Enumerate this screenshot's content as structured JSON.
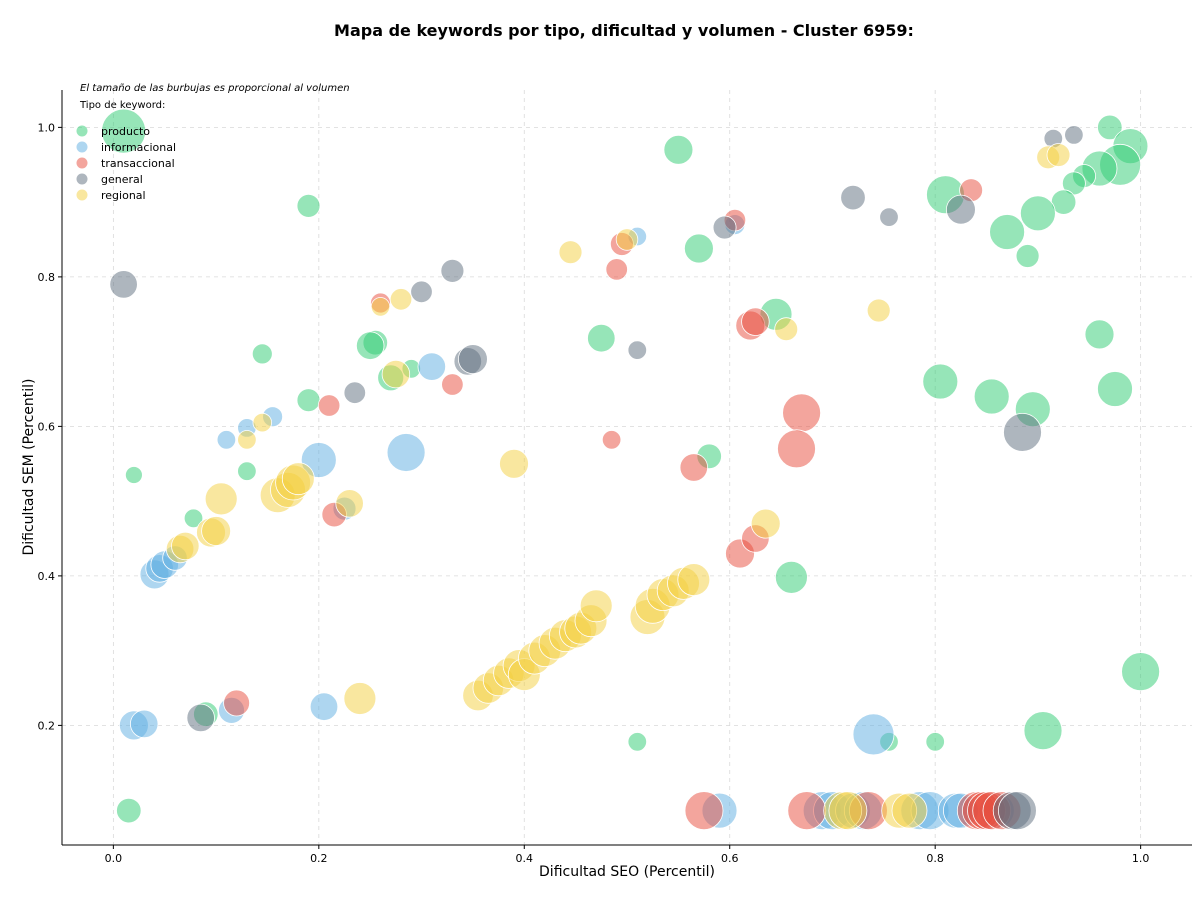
{
  "chart_data": {
    "type": "scatter",
    "title": "Mapa de keywords por tipo, dificultad y volumen - Cluster 6959:",
    "xlabel": "Dificultad SEO (Percentil)",
    "ylabel": "Dificultad SEM (Percentil)",
    "xlim": [
      -0.05,
      1.05
    ],
    "ylim": [
      0.04,
      1.05
    ],
    "xticks": [
      0.0,
      0.2,
      0.4,
      0.6,
      0.8,
      1.0
    ],
    "yticks": [
      0.2,
      0.4,
      0.6,
      0.8,
      1.0
    ],
    "xtick_labels": [
      "0.0",
      "0.2",
      "0.4",
      "0.6",
      "0.8",
      "1.0"
    ],
    "ytick_labels": [
      "0.2",
      "0.4",
      "0.6",
      "0.8",
      "1.0"
    ],
    "grid": true,
    "note": "El tamaño de las burbujas es proporcional al volumen",
    "legend_title": "Tipo de keyword:",
    "legend_position": "top-left",
    "series": [
      {
        "name": "producto",
        "color": "#2ecc71",
        "points": [
          [
            0.01,
            0.995,
            1
          ],
          [
            0.55,
            0.97,
            0.5
          ],
          [
            0.97,
            1.0,
            0.35
          ],
          [
            0.99,
            0.975,
            0.7
          ],
          [
            0.98,
            0.95,
            0.9
          ],
          [
            0.96,
            0.945,
            0.7
          ],
          [
            0.945,
            0.935,
            0.3
          ],
          [
            0.935,
            0.925,
            0.3
          ],
          [
            0.925,
            0.9,
            0.35
          ],
          [
            0.9,
            0.885,
            0.7
          ],
          [
            0.87,
            0.86,
            0.7
          ],
          [
            0.89,
            0.828,
            0.3
          ],
          [
            0.81,
            0.91,
            0.8
          ],
          [
            0.57,
            0.838,
            0.5
          ],
          [
            0.19,
            0.895,
            0.3
          ],
          [
            0.645,
            0.75,
            0.6
          ],
          [
            0.475,
            0.718,
            0.45
          ],
          [
            0.255,
            0.712,
            0.35
          ],
          [
            0.25,
            0.708,
            0.45
          ],
          [
            0.145,
            0.697,
            0.2
          ],
          [
            0.27,
            0.665,
            0.4
          ],
          [
            0.29,
            0.677,
            0.15
          ],
          [
            0.19,
            0.635,
            0.3
          ],
          [
            0.96,
            0.723,
            0.5
          ],
          [
            0.975,
            0.65,
            0.7
          ],
          [
            0.805,
            0.66,
            0.7
          ],
          [
            0.855,
            0.64,
            0.7
          ],
          [
            0.895,
            0.623,
            0.7
          ],
          [
            0.58,
            0.56,
            0.35
          ],
          [
            0.66,
            0.398,
            0.6
          ],
          [
            0.13,
            0.54,
            0.15
          ],
          [
            0.02,
            0.535,
            0.1
          ],
          [
            0.078,
            0.477,
            0.15
          ],
          [
            0.09,
            0.215,
            0.35
          ],
          [
            1.0,
            0.272,
            0.8
          ],
          [
            0.905,
            0.193,
            0.8
          ],
          [
            0.51,
            0.178,
            0.15
          ],
          [
            0.755,
            0.178,
            0.15
          ],
          [
            0.8,
            0.178,
            0.15
          ],
          [
            0.015,
            0.086,
            0.35
          ]
        ]
      },
      {
        "name": "informacional",
        "color": "#5dade2",
        "points": [
          [
            0.04,
            0.402,
            0.5
          ],
          [
            0.045,
            0.41,
            0.45
          ],
          [
            0.05,
            0.415,
            0.45
          ],
          [
            0.06,
            0.424,
            0.35
          ],
          [
            0.02,
            0.2,
            0.5
          ],
          [
            0.03,
            0.202,
            0.45
          ],
          [
            0.115,
            0.22,
            0.4
          ],
          [
            0.205,
            0.225,
            0.45
          ],
          [
            0.2,
            0.555,
            0.7
          ],
          [
            0.285,
            0.565,
            0.8
          ],
          [
            0.11,
            0.582,
            0.15
          ],
          [
            0.13,
            0.598,
            0.15
          ],
          [
            0.155,
            0.613,
            0.2
          ],
          [
            0.31,
            0.68,
            0.45
          ],
          [
            0.51,
            0.854,
            0.15
          ],
          [
            0.605,
            0.87,
            0.2
          ],
          [
            0.225,
            0.49,
            0.3
          ],
          [
            0.74,
            0.188,
            0.9
          ],
          [
            0.59,
            0.086,
            0.7
          ],
          [
            0.69,
            0.086,
            0.8
          ],
          [
            0.7,
            0.086,
            0.8
          ],
          [
            0.72,
            0.086,
            0.7
          ],
          [
            0.73,
            0.086,
            0.8
          ],
          [
            0.785,
            0.086,
            0.8
          ],
          [
            0.795,
            0.086,
            0.8
          ],
          [
            0.82,
            0.086,
            0.7
          ],
          [
            0.825,
            0.086,
            0.7
          ],
          [
            0.86,
            0.086,
            0.7
          ]
        ]
      },
      {
        "name": "transaccional",
        "color": "#e74c3c",
        "points": [
          [
            0.12,
            0.23,
            0.4
          ],
          [
            0.215,
            0.482,
            0.35
          ],
          [
            0.21,
            0.628,
            0.25
          ],
          [
            0.26,
            0.765,
            0.2
          ],
          [
            0.33,
            0.656,
            0.25
          ],
          [
            0.485,
            0.582,
            0.15
          ],
          [
            0.49,
            0.81,
            0.25
          ],
          [
            0.495,
            0.844,
            0.3
          ],
          [
            0.605,
            0.876,
            0.25
          ],
          [
            0.62,
            0.735,
            0.5
          ],
          [
            0.625,
            0.74,
            0.45
          ],
          [
            0.67,
            0.618,
            0.8
          ],
          [
            0.665,
            0.57,
            0.8
          ],
          [
            0.565,
            0.545,
            0.45
          ],
          [
            0.61,
            0.43,
            0.5
          ],
          [
            0.625,
            0.45,
            0.45
          ],
          [
            0.835,
            0.916,
            0.3
          ],
          [
            0.575,
            0.086,
            0.8
          ],
          [
            0.675,
            0.086,
            0.8
          ],
          [
            0.735,
            0.086,
            0.8
          ],
          [
            0.84,
            0.086,
            0.8
          ],
          [
            0.845,
            0.086,
            0.8
          ],
          [
            0.85,
            0.086,
            0.8
          ],
          [
            0.855,
            0.086,
            0.8
          ],
          [
            0.865,
            0.086,
            0.8
          ]
        ]
      },
      {
        "name": "general",
        "color": "#5d6d7e",
        "points": [
          [
            0.01,
            0.79,
            0.45
          ],
          [
            0.085,
            0.21,
            0.45
          ],
          [
            0.235,
            0.645,
            0.25
          ],
          [
            0.3,
            0.78,
            0.25
          ],
          [
            0.33,
            0.808,
            0.3
          ],
          [
            0.345,
            0.687,
            0.45
          ],
          [
            0.35,
            0.69,
            0.5
          ],
          [
            0.51,
            0.702,
            0.15
          ],
          [
            0.595,
            0.866,
            0.3
          ],
          [
            0.72,
            0.906,
            0.35
          ],
          [
            0.755,
            0.88,
            0.15
          ],
          [
            0.825,
            0.89,
            0.5
          ],
          [
            0.885,
            0.592,
            0.8
          ],
          [
            0.915,
            0.985,
            0.15
          ],
          [
            0.935,
            0.99,
            0.15
          ],
          [
            0.875,
            0.086,
            0.8
          ],
          [
            0.88,
            0.086,
            0.8
          ]
        ]
      },
      {
        "name": "regional",
        "color": "#f4d03f",
        "points": [
          [
            0.065,
            0.436,
            0.45
          ],
          [
            0.07,
            0.44,
            0.45
          ],
          [
            0.095,
            0.458,
            0.5
          ],
          [
            0.1,
            0.46,
            0.5
          ],
          [
            0.105,
            0.503,
            0.6
          ],
          [
            0.16,
            0.508,
            0.7
          ],
          [
            0.17,
            0.515,
            0.7
          ],
          [
            0.175,
            0.525,
            0.7
          ],
          [
            0.18,
            0.53,
            0.6
          ],
          [
            0.23,
            0.497,
            0.45
          ],
          [
            0.13,
            0.582,
            0.15
          ],
          [
            0.145,
            0.605,
            0.15
          ],
          [
            0.26,
            0.76,
            0.15
          ],
          [
            0.275,
            0.67,
            0.45
          ],
          [
            0.28,
            0.77,
            0.25
          ],
          [
            0.24,
            0.236,
            0.6
          ],
          [
            0.39,
            0.55,
            0.5
          ],
          [
            0.445,
            0.833,
            0.3
          ],
          [
            0.5,
            0.85,
            0.25
          ],
          [
            0.355,
            0.24,
            0.55
          ],
          [
            0.365,
            0.25,
            0.55
          ],
          [
            0.375,
            0.26,
            0.55
          ],
          [
            0.385,
            0.27,
            0.55
          ],
          [
            0.395,
            0.28,
            0.6
          ],
          [
            0.4,
            0.268,
            0.6
          ],
          [
            0.41,
            0.29,
            0.6
          ],
          [
            0.42,
            0.3,
            0.6
          ],
          [
            0.43,
            0.31,
            0.6
          ],
          [
            0.44,
            0.32,
            0.6
          ],
          [
            0.45,
            0.325,
            0.6
          ],
          [
            0.455,
            0.33,
            0.6
          ],
          [
            0.465,
            0.34,
            0.6
          ],
          [
            0.47,
            0.36,
            0.6
          ],
          [
            0.52,
            0.345,
            0.7
          ],
          [
            0.525,
            0.36,
            0.7
          ],
          [
            0.535,
            0.375,
            0.6
          ],
          [
            0.545,
            0.38,
            0.6
          ],
          [
            0.555,
            0.39,
            0.6
          ],
          [
            0.565,
            0.395,
            0.6
          ],
          [
            0.635,
            0.47,
            0.5
          ],
          [
            0.655,
            0.73,
            0.3
          ],
          [
            0.745,
            0.755,
            0.3
          ],
          [
            0.91,
            0.96,
            0.3
          ],
          [
            0.92,
            0.963,
            0.3
          ],
          [
            0.71,
            0.086,
            0.8
          ],
          [
            0.715,
            0.086,
            0.8
          ],
          [
            0.765,
            0.086,
            0.7
          ],
          [
            0.775,
            0.086,
            0.7
          ]
        ]
      }
    ]
  }
}
